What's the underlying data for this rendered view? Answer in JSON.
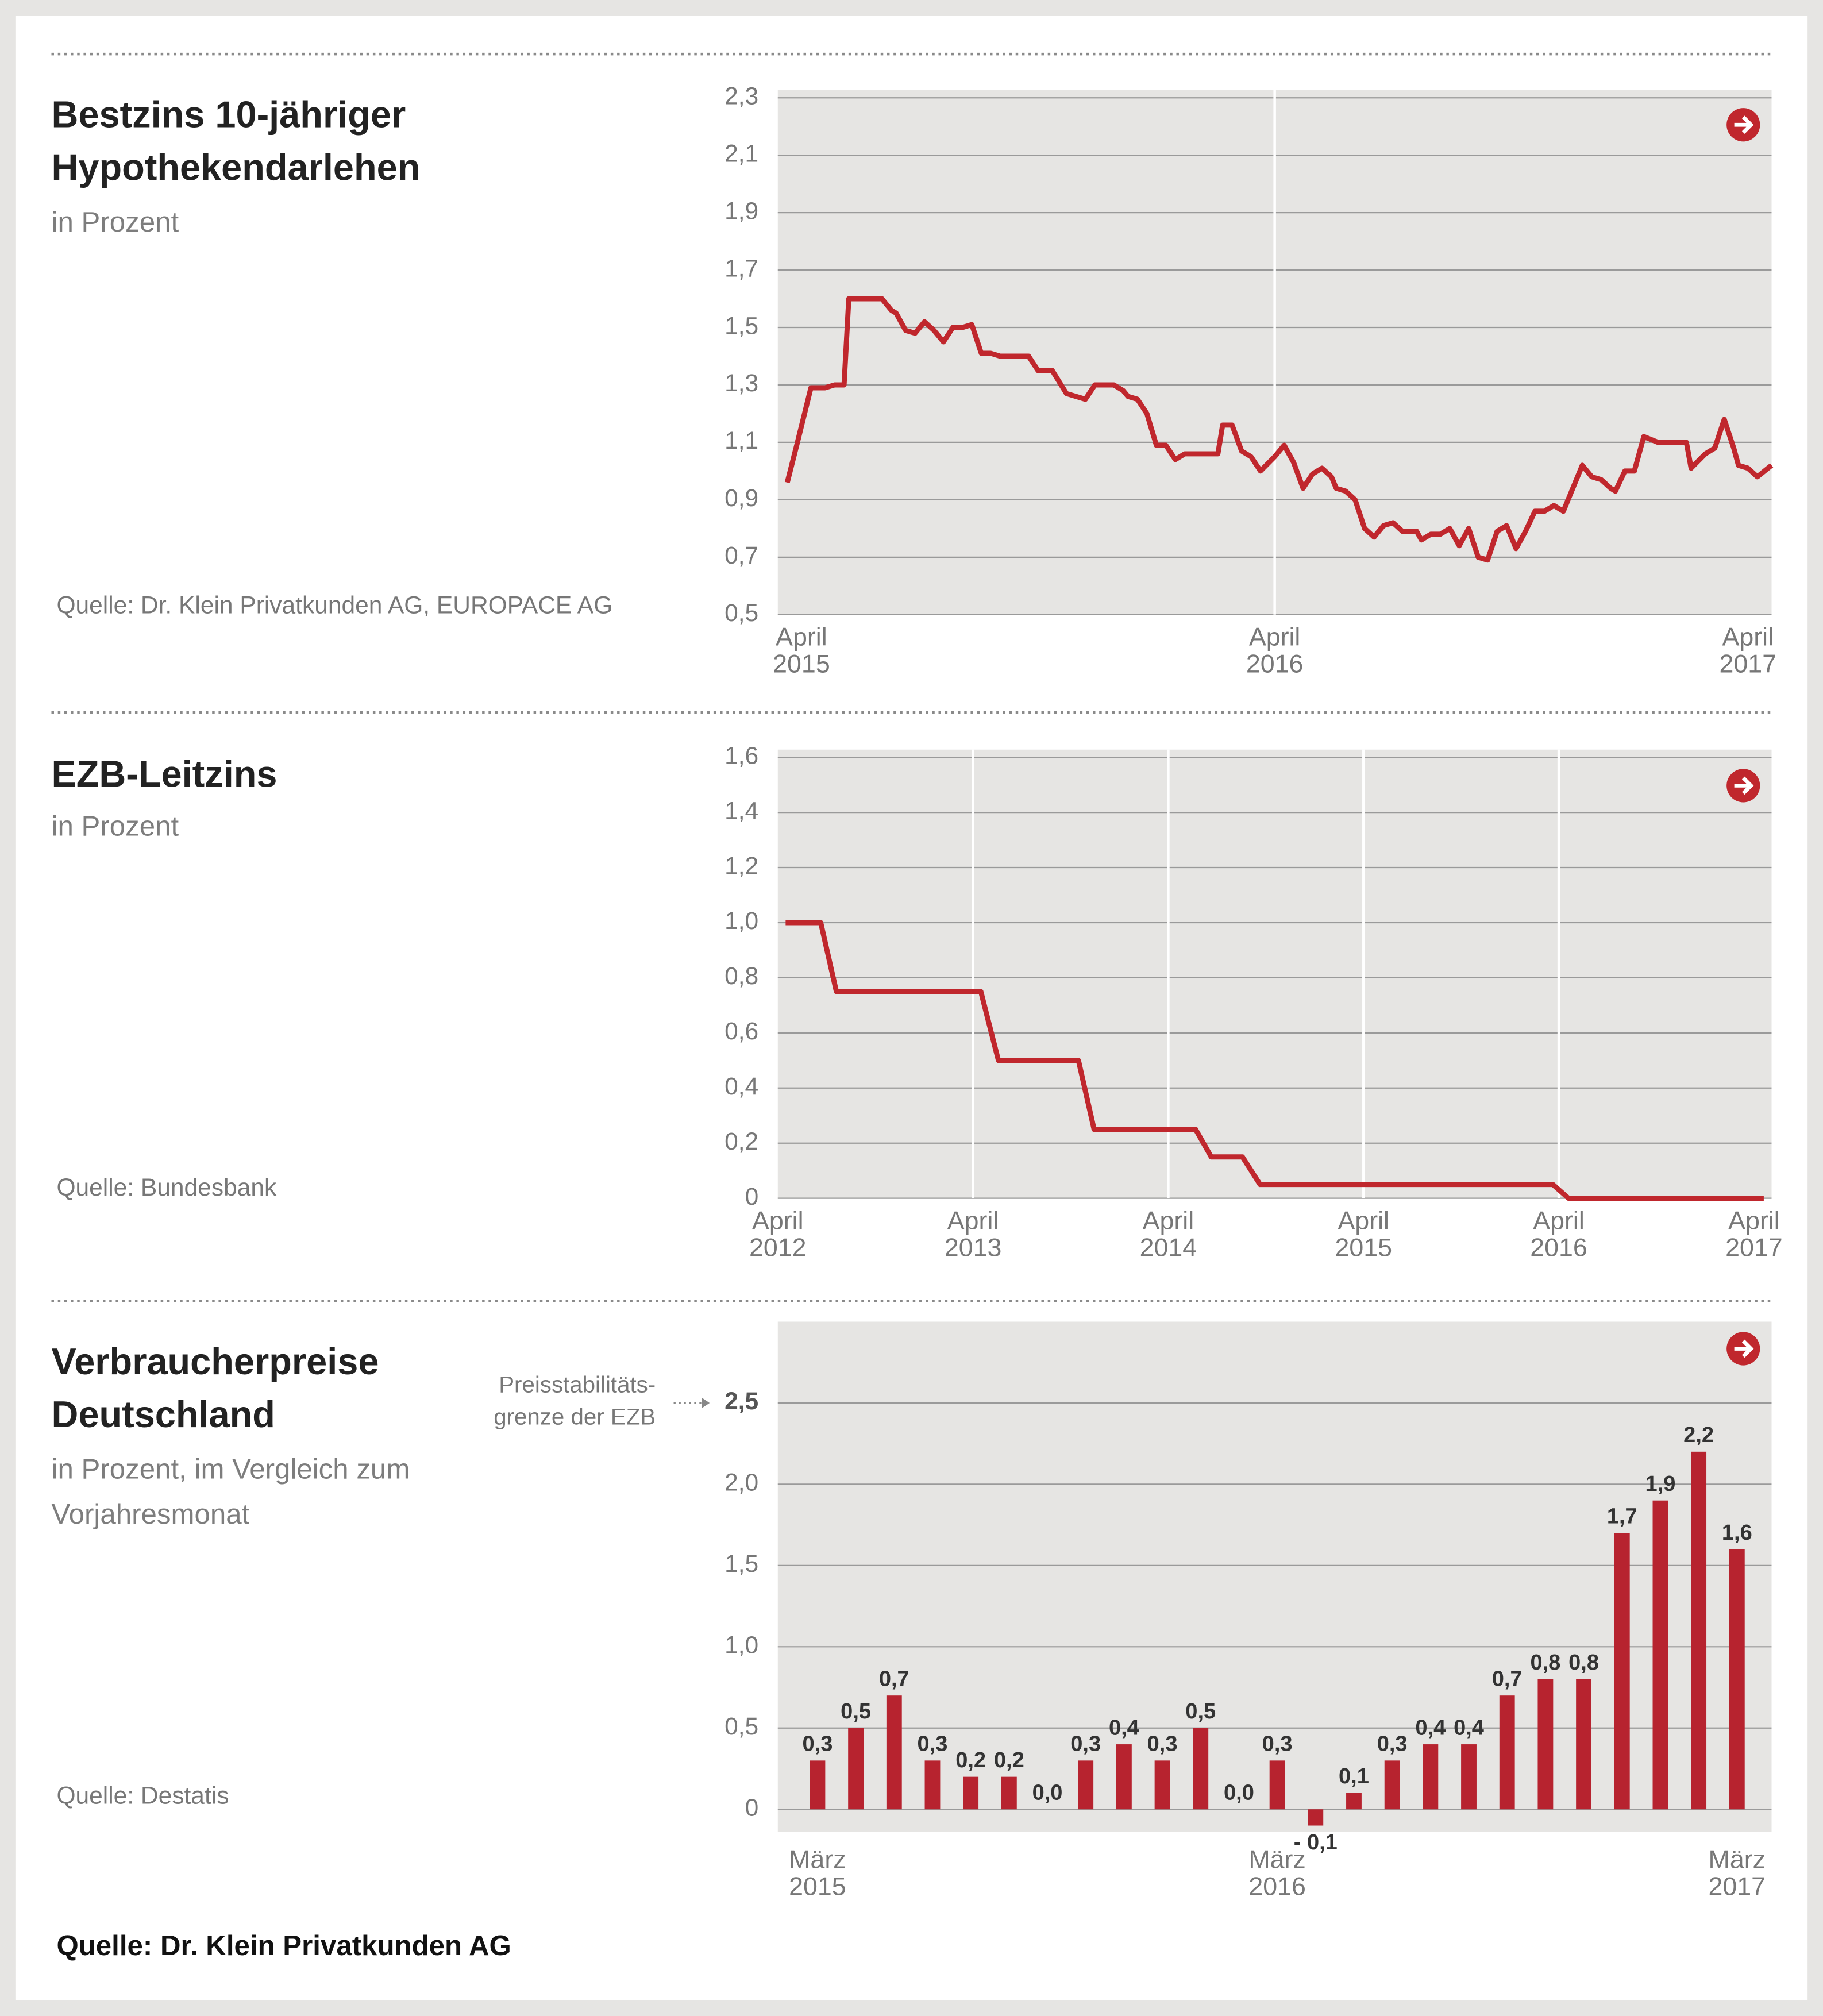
{
  "source": "Quelle: Dr. Klein Privatkunden AG",
  "chart_data": [
    {
      "type": "line",
      "title": "Bestzins 10-jähriger Hypothekendarlehen",
      "subtitle": "in Prozent",
      "source": "Quelle: Dr. Klein Privatkunden AG, EUROPACE AG",
      "color": "#c0272d",
      "grid": true,
      "x": [
        2015.22,
        2015.24,
        2015.27,
        2015.3,
        2015.32,
        2015.34,
        2015.35,
        2015.42,
        2015.44,
        2015.45,
        2015.47,
        2015.49,
        2015.51,
        2015.53,
        2015.55,
        2015.57,
        2015.59,
        2015.61,
        2015.63,
        2015.65,
        2015.67,
        2015.73,
        2015.75,
        2015.78,
        2015.81,
        2015.83,
        2015.85,
        2015.87,
        2015.91,
        2015.93,
        2015.94,
        2015.96,
        2015.98,
        2016.0,
        2016.02,
        2016.04,
        2016.06,
        2016.08,
        2016.11,
        2016.13,
        2016.14,
        2016.16,
        2016.18,
        2016.2,
        2016.22,
        2016.25,
        2016.27,
        2016.29,
        2016.31,
        2016.33,
        2016.35,
        2016.37,
        2016.38,
        2016.4,
        2016.42,
        2016.44,
        2016.46,
        2016.48,
        2016.5,
        2016.52,
        2016.55,
        2016.56,
        2016.58,
        2016.6,
        2016.62,
        2016.64,
        2016.66,
        2016.68,
        2016.7,
        2016.72,
        2016.74,
        2016.76,
        2016.78,
        2016.8,
        2016.82,
        2016.84,
        2016.86,
        2016.88,
        2016.9,
        2016.92,
        2016.94,
        2016.96,
        2016.97,
        2016.99,
        2017.01,
        2017.03,
        2017.06,
        2017.12,
        2017.13,
        2017.16,
        2017.18,
        2017.2,
        2017.22,
        2017.23,
        2017.25,
        2017.27,
        2017.3
      ],
      "values": [
        0.96,
        1.09,
        1.29,
        1.29,
        1.3,
        1.3,
        1.6,
        1.6,
        1.56,
        1.55,
        1.49,
        1.48,
        1.52,
        1.49,
        1.45,
        1.5,
        1.5,
        1.51,
        1.41,
        1.41,
        1.4,
        1.4,
        1.35,
        1.35,
        1.27,
        1.26,
        1.25,
        1.3,
        1.3,
        1.28,
        1.26,
        1.25,
        1.2,
        1.09,
        1.09,
        1.04,
        1.06,
        1.06,
        1.06,
        1.06,
        1.16,
        1.16,
        1.07,
        1.05,
        1.0,
        1.05,
        1.09,
        1.03,
        0.94,
        0.99,
        1.01,
        0.98,
        0.94,
        0.93,
        0.9,
        0.8,
        0.77,
        0.81,
        0.82,
        0.79,
        0.79,
        0.76,
        0.78,
        0.78,
        0.8,
        0.74,
        0.8,
        0.7,
        0.69,
        0.79,
        0.81,
        0.73,
        0.79,
        0.86,
        0.86,
        0.88,
        0.86,
        0.94,
        1.02,
        0.98,
        0.97,
        0.94,
        0.93,
        1.0,
        1.0,
        1.12,
        1.1,
        1.1,
        1.01,
        1.06,
        1.08,
        1.18,
        1.08,
        1.02,
        1.01,
        0.98,
        1.02
      ],
      "xlim": [
        2015.2,
        2017.3
      ],
      "xticks": [
        {
          "value": 2015.25,
          "label": "April 2015"
        },
        {
          "value": 2016.25,
          "label": "April 2016"
        },
        {
          "value": 2017.25,
          "label": "April 2017"
        }
      ],
      "ylim": [
        0.5,
        2.3
      ],
      "yticks": [
        {
          "value": 0.5,
          "label": "0,5"
        },
        {
          "value": 0.7,
          "label": "0,7"
        },
        {
          "value": 0.9,
          "label": "0,9"
        },
        {
          "value": 1.1,
          "label": "1,1"
        },
        {
          "value": 1.3,
          "label": "1,3"
        },
        {
          "value": 1.5,
          "label": "1,5"
        },
        {
          "value": 1.7,
          "label": "1,7"
        },
        {
          "value": 1.9,
          "label": "1,9"
        },
        {
          "value": 2.1,
          "label": "2,1"
        },
        {
          "value": 2.3,
          "label": "2,3"
        }
      ]
    },
    {
      "type": "line",
      "title": "EZB-Leitzins",
      "subtitle": "in Prozent",
      "source": "Quelle: Bundesbank",
      "color": "#c0272d",
      "grid": true,
      "x": [
        2012.29,
        2012.47,
        2012.55,
        2013.29,
        2013.38,
        2013.79,
        2013.87,
        2014.39,
        2014.47,
        2014.63,
        2014.72,
        2016.22,
        2016.3,
        2017.3
      ],
      "values": [
        1.0,
        1.0,
        0.75,
        0.75,
        0.5,
        0.5,
        0.25,
        0.25,
        0.15,
        0.15,
        0.05,
        0.05,
        0,
        0
      ],
      "xlim": [
        2012.25,
        2017.34
      ],
      "xticks": [
        {
          "value": 2012.25,
          "label": "April 2012"
        },
        {
          "value": 2013.25,
          "label": "April 2013"
        },
        {
          "value": 2014.25,
          "label": "April 2014"
        },
        {
          "value": 2015.25,
          "label": "April 2015"
        },
        {
          "value": 2016.25,
          "label": "April 2016"
        },
        {
          "value": 2017.25,
          "label": "April 2017"
        }
      ],
      "ylim": [
        0,
        1.6
      ],
      "yticks": [
        0,
        {
          "value": 0.2,
          "label": "0,2"
        },
        {
          "value": 0.4,
          "label": "0,4"
        },
        {
          "value": 0.6,
          "label": "0,6"
        },
        {
          "value": 0.8,
          "label": "0,8"
        },
        {
          "value": 1.0,
          "label": "1,0"
        },
        {
          "value": 1.2,
          "label": "1,2"
        },
        {
          "value": 1.4,
          "label": "1,4"
        },
        {
          "value": 1.6,
          "label": "1,6"
        }
      ]
    },
    {
      "type": "bar",
      "title": "Verbraucherpreise Deutschland",
      "subtitle": "in Prozent, im Vergleich zum Vorjahresmonat",
      "source": "Quelle: Destatis",
      "annotation": [
        "Preisstabilitäts-",
        "grenze der EZB"
      ],
      "color": "#b7232f",
      "grid": true,
      "categories": [
        "März 2015",
        null,
        null,
        null,
        null,
        null,
        null,
        null,
        null,
        null,
        null,
        null,
        "März 2016",
        null,
        null,
        null,
        null,
        null,
        null,
        null,
        null,
        null,
        null,
        null,
        "März 2017"
      ],
      "values": [
        0.3,
        0.5,
        0.7,
        0.3,
        0.2,
        0.2,
        0.0,
        0.3,
        0.4,
        0.3,
        0.5,
        0.0,
        0.3,
        -0.1,
        0.1,
        0.3,
        0.4,
        0.4,
        0.7,
        0.8,
        0.8,
        1.7,
        1.9,
        2.2,
        1.6
      ],
      "value_labels": [
        "0,3",
        "0,5",
        "0,7",
        "0,3",
        "0,2",
        "0,2",
        "0,0",
        "0,3",
        "0,4",
        "0,3",
        "0,5",
        "0,0",
        "0,3",
        "- 0,1",
        "0,1",
        "0,3",
        "0,4",
        "0,4",
        "0,7",
        "0,8",
        "0,8",
        "1,7",
        "1,9",
        "2,2",
        "1,6"
      ],
      "ylim": [
        -0.14,
        3.0
      ],
      "yticks": [
        0,
        {
          "value": 0.5,
          "label": "0,5"
        },
        {
          "value": 1.0,
          "label": "1,0"
        },
        {
          "value": 1.5,
          "label": "1,5"
        },
        {
          "value": 2.0,
          "label": "2,0"
        },
        {
          "value": 2.5,
          "label": "2,5"
        }
      ]
    }
  ]
}
